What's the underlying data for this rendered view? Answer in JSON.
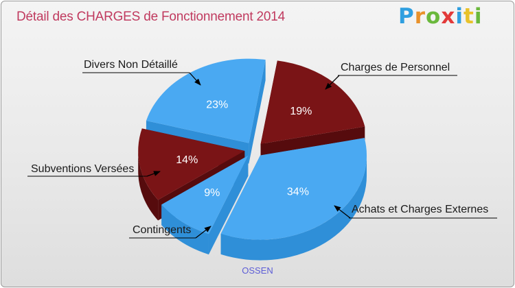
{
  "title": "Détail des CHARGES de Fonctionnement 2014",
  "logo": {
    "text": "Proxiti",
    "letters": [
      {
        "ch": "P",
        "color": "#2f9fe0"
      },
      {
        "ch": "r",
        "color": "#e8912b"
      },
      {
        "ch": "o",
        "color": "#6ab83c"
      },
      {
        "ch": "x",
        "color": "#e23a3a"
      },
      {
        "ch": "i",
        "color": "#2f9fe0"
      },
      {
        "ch": "t",
        "color": "#e8c22b"
      },
      {
        "ch": "i",
        "color": "#6ab83c"
      }
    ]
  },
  "footer": "OSSEN",
  "colors": {
    "blue": "#4aa9f2",
    "blue_side": "#2f8fd8",
    "maroon": "#7a1416",
    "maroon_side": "#560b0d",
    "title": "#c03a5f"
  },
  "chart_data": {
    "type": "pie",
    "title": "Détail des CHARGES de Fonctionnement 2014",
    "slices": [
      {
        "label": "Charges de Personnel",
        "value": 19,
        "pct_label": "19%",
        "color": "maroon"
      },
      {
        "label": "Achats et Charges Externes",
        "value": 34,
        "pct_label": "34%",
        "color": "blue"
      },
      {
        "label": "Contingents",
        "value": 9,
        "pct_label": "9%",
        "color": "blue"
      },
      {
        "label": "Subventions Versées",
        "value": 14,
        "pct_label": "14%",
        "color": "maroon"
      },
      {
        "label": "Divers Non Détaillé",
        "value": 23,
        "pct_label": "23%",
        "color": "blue"
      }
    ]
  }
}
